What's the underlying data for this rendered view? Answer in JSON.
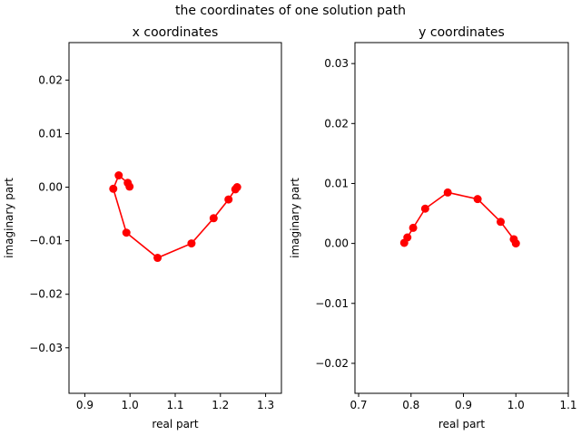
{
  "figure": {
    "suptitle": "the coordinates of one solution path"
  },
  "chart_data": [
    {
      "type": "line",
      "title": "x coordinates",
      "xlabel": "real part",
      "ylabel": "imaginary part",
      "xlim": [
        0.865,
        1.335
      ],
      "ylim": [
        -0.0385,
        0.027
      ],
      "xticks": [
        0.9,
        1.0,
        1.1,
        1.2,
        1.3
      ],
      "xtick_labels": [
        "0.9",
        "1.0",
        "1.1",
        "1.2",
        "1.3"
      ],
      "yticks": [
        -0.03,
        -0.02,
        -0.01,
        0.0,
        0.01,
        0.02
      ],
      "ytick_labels": [
        "−0.03",
        "−0.02",
        "−0.01",
        "0.00",
        "0.01",
        "0.02"
      ],
      "color": "#ff0000",
      "grid": false,
      "series": [
        {
          "x": [
            1.237,
            1.233,
            1.218,
            1.185,
            1.136,
            1.061,
            0.992,
            0.963,
            0.975,
            0.995,
            0.999
          ],
          "y": [
            0.0,
            -0.0004,
            -0.0023,
            -0.0058,
            -0.0105,
            -0.0132,
            -0.0085,
            -0.0003,
            0.0022,
            0.0008,
            0.0001
          ]
        }
      ]
    },
    {
      "type": "line",
      "title": "y coordinates",
      "xlabel": "real part",
      "ylabel": "imaginary part",
      "xlim": [
        0.693,
        1.1
      ],
      "ylim": [
        -0.025,
        0.0335
      ],
      "xticks": [
        0.7,
        0.8,
        0.9,
        1.0,
        1.1
      ],
      "xtick_labels": [
        "0.7",
        "0.8",
        "0.9",
        "1.0",
        "1.1"
      ],
      "yticks": [
        -0.02,
        -0.01,
        0.0,
        0.01,
        0.02,
        0.03
      ],
      "ytick_labels": [
        "−0.02",
        "−0.01",
        "0.00",
        "0.01",
        "0.02",
        "0.03"
      ],
      "color": "#ff0000",
      "grid": false,
      "series": [
        {
          "x": [
            1.0,
            0.996,
            0.971,
            0.927,
            0.87,
            0.827,
            0.804,
            0.793,
            0.787
          ],
          "y": [
            0.0,
            0.0007,
            0.0036,
            0.0074,
            0.0085,
            0.0058,
            0.0026,
            0.001,
            0.0001
          ]
        }
      ]
    }
  ]
}
